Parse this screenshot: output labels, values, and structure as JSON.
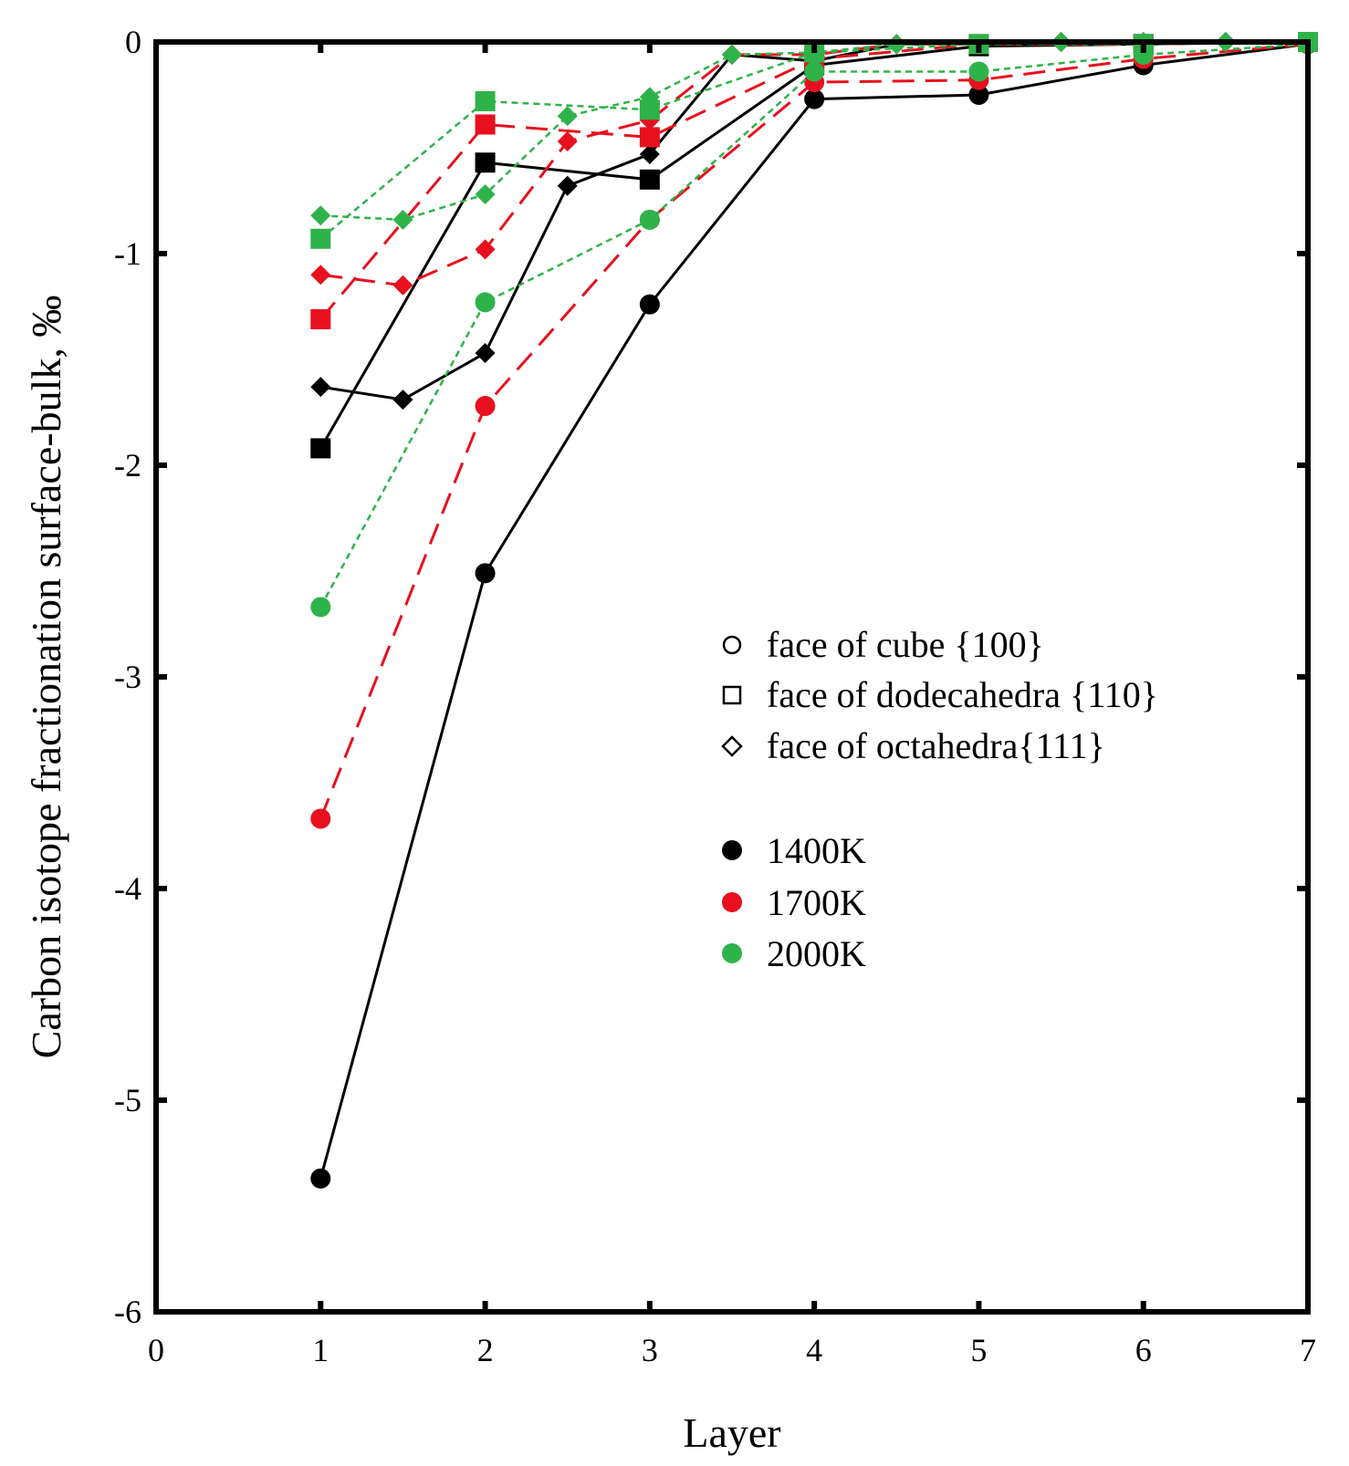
{
  "chart_data": {
    "type": "line",
    "xlabel": "Layer",
    "ylabel": "Carbon isotope fractionation surface-bulk, ‰",
    "xlim": [
      0,
      7
    ],
    "ylim": [
      -6,
      0
    ],
    "xticks": [
      "0",
      "1",
      "2",
      "3",
      "4",
      "5",
      "6",
      "7"
    ],
    "yticks": [
      "0",
      "-1",
      "-2",
      "-3",
      "-4",
      "-5",
      "-6"
    ],
    "grid": false,
    "legend_placement": "center-right",
    "legend": {
      "shapes": [
        {
          "marker": "circle",
          "label": "face of cube {100}"
        },
        {
          "marker": "square",
          "label": "face of dodecahedra {110}"
        },
        {
          "marker": "diamond",
          "label": "face of octahedra{111}"
        }
      ],
      "temperatures": [
        {
          "color": "#000000",
          "label": "1400K"
        },
        {
          "color": "#e8101e",
          "label": "1700K"
        },
        {
          "color": "#2eb34a",
          "label": "2000K"
        }
      ]
    },
    "colors": {
      "1400K": "#000000",
      "1700K": "#e8101e",
      "2000K": "#2eb34a"
    },
    "series": [
      {
        "temperature": "1400K",
        "marker": "circle",
        "line": "solid",
        "x": [
          1,
          2,
          3,
          4,
          5,
          6,
          7
        ],
        "y": [
          -5.37,
          -2.51,
          -1.24,
          -0.27,
          -0.25,
          -0.11,
          -0.01
        ]
      },
      {
        "temperature": "1400K",
        "marker": "square",
        "line": "solid",
        "x": [
          1,
          2,
          3,
          4,
          5,
          6,
          7
        ],
        "y": [
          -1.92,
          -0.57,
          -0.65,
          -0.11,
          -0.02,
          -0.01,
          0.0
        ]
      },
      {
        "temperature": "1400K",
        "marker": "diamond",
        "line": "solid",
        "x": [
          1,
          1.5,
          2,
          2.5,
          3,
          3.5,
          4,
          4.5,
          5,
          5.5,
          6,
          6.5,
          7
        ],
        "y": [
          -1.63,
          -1.69,
          -1.47,
          -0.68,
          -0.53,
          -0.06,
          -0.09,
          -0.01,
          -0.01,
          0.0,
          -0.01,
          0.0,
          0.0
        ]
      },
      {
        "temperature": "1700K",
        "marker": "circle",
        "line": "dashed",
        "x": [
          1,
          2,
          3,
          4,
          5,
          6,
          7
        ],
        "y": [
          -3.67,
          -1.72,
          -0.84,
          -0.19,
          -0.18,
          -0.08,
          -0.01
        ]
      },
      {
        "temperature": "1700K",
        "marker": "square",
        "line": "dashed",
        "x": [
          1,
          2,
          3,
          4,
          5,
          6,
          7
        ],
        "y": [
          -1.31,
          -0.39,
          -0.45,
          -0.08,
          -0.01,
          -0.01,
          0.0
        ]
      },
      {
        "temperature": "1700K",
        "marker": "diamond",
        "line": "dashed",
        "x": [
          1,
          1.5,
          2,
          2.5,
          3,
          3.5,
          4,
          4.5,
          5,
          5.5,
          6,
          6.5,
          7
        ],
        "y": [
          -1.1,
          -1.15,
          -0.98,
          -0.47,
          -0.37,
          -0.06,
          -0.06,
          -0.01,
          -0.01,
          0.0,
          0.0,
          0.0,
          0.0
        ]
      },
      {
        "temperature": "2000K",
        "marker": "circle",
        "line": "dotted",
        "x": [
          1,
          2,
          3,
          4,
          5,
          6,
          7
        ],
        "y": [
          -2.67,
          -1.23,
          -0.84,
          -0.14,
          -0.14,
          -0.06,
          -0.01
        ]
      },
      {
        "temperature": "2000K",
        "marker": "square",
        "line": "dotted",
        "x": [
          1,
          2,
          3,
          4,
          5,
          6,
          7
        ],
        "y": [
          -0.93,
          -0.28,
          -0.32,
          -0.05,
          -0.01,
          -0.01,
          0.0
        ]
      },
      {
        "temperature": "2000K",
        "marker": "diamond",
        "line": "dotted",
        "x": [
          1,
          1.5,
          2,
          2.5,
          3,
          3.5,
          4,
          4.5,
          5,
          5.5,
          6,
          6.5,
          7
        ],
        "y": [
          -0.82,
          -0.84,
          -0.72,
          -0.35,
          -0.26,
          -0.06,
          -0.05,
          -0.01,
          -0.01,
          0.0,
          0.0,
          0.0,
          0.0
        ]
      }
    ]
  }
}
